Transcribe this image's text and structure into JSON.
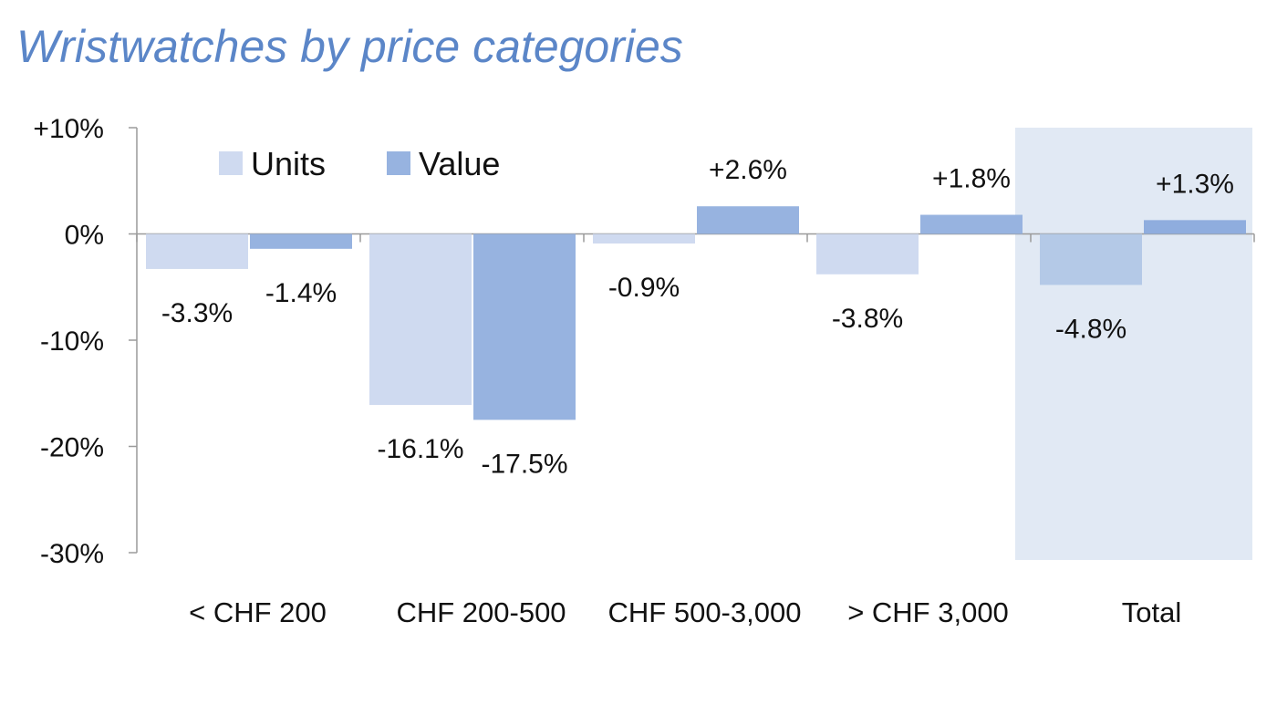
{
  "title": "Wristwatches by price categories",
  "colors": {
    "units": "#cfdaf0",
    "value": "#97b3e0",
    "highlight_bg": "#e1e9f4",
    "highlight_units": "#b4c9e7",
    "highlight_value": "#8fadde",
    "axis": "#9a9a9a"
  },
  "chart_data": {
    "type": "bar",
    "title": "Wristwatches by price categories",
    "xlabel": "",
    "ylabel": "",
    "categories": [
      "< CHF 200",
      "CHF 200-500",
      "CHF 500-3,000",
      "> CHF 3,000",
      "Total"
    ],
    "series": [
      {
        "name": "Units",
        "values": [
          -3.3,
          -16.1,
          -0.9,
          -3.8,
          -4.8
        ],
        "labels": [
          "-3.3%",
          "-16.1%",
          "-0.9%",
          "-3.8%",
          "-4.8%"
        ]
      },
      {
        "name": "Value",
        "values": [
          -1.4,
          -17.5,
          2.6,
          1.8,
          1.3
        ],
        "labels": [
          "-1.4%",
          "-17.5%",
          "+2.6%",
          "+1.8%",
          "+1.3%"
        ]
      }
    ],
    "ylim": [
      -30,
      10
    ],
    "yticks": [
      10,
      0,
      -10,
      -20,
      -30
    ],
    "ytick_labels": [
      "+10%",
      "0%",
      "-10%",
      "-20%",
      "-30%"
    ],
    "highlighted_category": "Total",
    "legend": "top-left",
    "grid": false
  }
}
